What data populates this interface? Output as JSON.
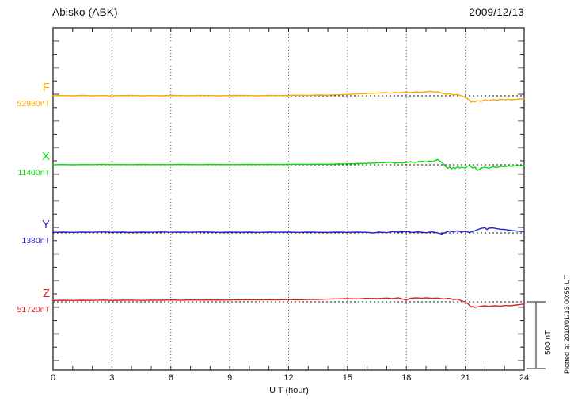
{
  "title": "Abisko (ABK)",
  "date": "2009/12/13",
  "xaxis": {
    "label": "U T (hour)",
    "ticks": [
      0,
      3,
      6,
      9,
      12,
      15,
      18,
      21,
      24
    ]
  },
  "scale_bar": {
    "label": "500 nT",
    "nT": 500
  },
  "footnote": "Plotted at 2010/01/13 00:55 UT",
  "chart_data": {
    "type": "line",
    "title": "Abisko (ABK)",
    "date": "2009/12/13",
    "xlabel": "U T (hour)",
    "x_range": [
      0,
      24
    ],
    "x_ticks": [
      0,
      3,
      6,
      9,
      12,
      15,
      18,
      21,
      24
    ],
    "x_grid_hours": [
      3,
      6,
      9,
      12,
      15,
      18,
      21
    ],
    "y_unit": "nT",
    "y_tick_step_nT": 100,
    "scale_bar_nT": 500,
    "note": "Each series plotted as deviation (nT) from its baseline value; dotted line = baseline.",
    "series": [
      {
        "name": "F",
        "value_label": "52980nT",
        "baseline_nT": 52980,
        "color": "#FFA800",
        "points": [
          [
            0,
            0
          ],
          [
            0.5,
            2
          ],
          [
            1,
            0
          ],
          [
            1.5,
            3
          ],
          [
            2,
            0
          ],
          [
            2.5,
            2
          ],
          [
            3,
            0
          ],
          [
            3.5,
            2
          ],
          [
            4,
            3
          ],
          [
            4.5,
            0
          ],
          [
            5,
            2
          ],
          [
            5.5,
            0
          ],
          [
            6,
            3
          ],
          [
            6.5,
            2
          ],
          [
            7,
            0
          ],
          [
            7.5,
            3
          ],
          [
            8,
            2
          ],
          [
            8.5,
            0
          ],
          [
            9,
            2
          ],
          [
            9.5,
            3
          ],
          [
            10,
            2
          ],
          [
            10.5,
            0
          ],
          [
            11,
            3
          ],
          [
            11.5,
            2
          ],
          [
            12,
            3
          ],
          [
            12.5,
            5
          ],
          [
            13,
            3
          ],
          [
            13.5,
            6
          ],
          [
            14,
            5
          ],
          [
            14.5,
            8
          ],
          [
            15,
            10
          ],
          [
            15.5,
            14
          ],
          [
            16,
            18
          ],
          [
            16.5,
            20
          ],
          [
            17,
            24
          ],
          [
            17.2,
            18
          ],
          [
            17.4,
            26
          ],
          [
            17.6,
            22
          ],
          [
            18,
            28
          ],
          [
            18.2,
            24
          ],
          [
            18.5,
            30
          ],
          [
            18.7,
            26
          ],
          [
            19,
            30
          ],
          [
            19.2,
            34
          ],
          [
            19.4,
            28
          ],
          [
            19.6,
            30
          ],
          [
            19.8,
            20
          ],
          [
            20,
            12
          ],
          [
            20.2,
            16
          ],
          [
            20.4,
            6
          ],
          [
            20.6,
            10
          ],
          [
            20.8,
            0
          ],
          [
            21,
            -10
          ],
          [
            21.1,
            -20
          ],
          [
            21.2,
            -30
          ],
          [
            21.3,
            -48
          ],
          [
            21.4,
            -40
          ],
          [
            21.5,
            -46
          ],
          [
            21.6,
            -36
          ],
          [
            21.8,
            -42
          ],
          [
            22,
            -30
          ],
          [
            22.2,
            -36
          ],
          [
            22.4,
            -28
          ],
          [
            22.6,
            -32
          ],
          [
            22.8,
            -26
          ],
          [
            23,
            -30
          ],
          [
            23.2,
            -26
          ],
          [
            23.4,
            -30
          ],
          [
            23.6,
            -26
          ],
          [
            23.8,
            -24
          ],
          [
            24,
            -22
          ]
        ]
      },
      {
        "name": "X",
        "value_label": "11400nT",
        "baseline_nT": 11400,
        "color": "#00DD00",
        "points": [
          [
            0,
            0
          ],
          [
            0.5,
            2
          ],
          [
            1,
            0
          ],
          [
            1.5,
            2
          ],
          [
            2,
            1
          ],
          [
            2.5,
            3
          ],
          [
            3,
            1
          ],
          [
            3.5,
            2
          ],
          [
            4,
            1
          ],
          [
            4.5,
            3
          ],
          [
            5,
            1
          ],
          [
            5.5,
            2
          ],
          [
            6,
            1
          ],
          [
            6.5,
            3
          ],
          [
            7,
            2
          ],
          [
            7.5,
            1
          ],
          [
            8,
            3
          ],
          [
            8.5,
            2
          ],
          [
            9,
            1
          ],
          [
            9.5,
            2
          ],
          [
            10,
            3
          ],
          [
            10.5,
            2
          ],
          [
            11,
            3
          ],
          [
            11.5,
            2
          ],
          [
            12,
            3
          ],
          [
            12.5,
            4
          ],
          [
            13,
            3
          ],
          [
            13.5,
            5
          ],
          [
            14,
            4
          ],
          [
            14.5,
            6
          ],
          [
            15,
            7
          ],
          [
            15.5,
            9
          ],
          [
            16,
            11
          ],
          [
            16.5,
            14
          ],
          [
            17,
            17
          ],
          [
            17.2,
            20
          ],
          [
            17.4,
            12
          ],
          [
            17.6,
            16
          ],
          [
            17.8,
            14
          ],
          [
            18,
            18
          ],
          [
            18.2,
            24
          ],
          [
            18.4,
            18
          ],
          [
            18.6,
            22
          ],
          [
            18.8,
            26
          ],
          [
            19,
            22
          ],
          [
            19.2,
            28
          ],
          [
            19.35,
            24
          ],
          [
            19.5,
            34
          ],
          [
            19.6,
            40
          ],
          [
            19.7,
            28
          ],
          [
            19.8,
            18
          ],
          [
            19.9,
            4
          ],
          [
            20,
            -12
          ],
          [
            20.1,
            -26
          ],
          [
            20.2,
            -16
          ],
          [
            20.3,
            -30
          ],
          [
            20.4,
            -20
          ],
          [
            20.5,
            -28
          ],
          [
            20.6,
            -14
          ],
          [
            20.7,
            -24
          ],
          [
            20.8,
            -18
          ],
          [
            21,
            -24
          ],
          [
            21.1,
            -12
          ],
          [
            21.2,
            -4
          ],
          [
            21.3,
            -16
          ],
          [
            21.4,
            -24
          ],
          [
            21.5,
            -18
          ],
          [
            21.6,
            -42
          ],
          [
            21.7,
            -36
          ],
          [
            21.8,
            -26
          ],
          [
            22,
            -18
          ],
          [
            22.2,
            -26
          ],
          [
            22.4,
            -14
          ],
          [
            22.6,
            -20
          ],
          [
            22.8,
            -10
          ],
          [
            23,
            -14
          ],
          [
            23.2,
            -8
          ],
          [
            23.4,
            -12
          ],
          [
            23.6,
            -6
          ],
          [
            23.8,
            -8
          ],
          [
            24,
            -4
          ]
        ]
      },
      {
        "name": "Y",
        "value_label": "1380nT",
        "baseline_nT": 1380,
        "color": "#2222CC",
        "points": [
          [
            0,
            4
          ],
          [
            0.5,
            6
          ],
          [
            1,
            4
          ],
          [
            1.5,
            6
          ],
          [
            2,
            5
          ],
          [
            2.5,
            7
          ],
          [
            3,
            5
          ],
          [
            3.5,
            6
          ],
          [
            4,
            4
          ],
          [
            4.5,
            6
          ],
          [
            5,
            5
          ],
          [
            5.5,
            7
          ],
          [
            6,
            5
          ],
          [
            6.5,
            6
          ],
          [
            7,
            5
          ],
          [
            7.5,
            7
          ],
          [
            8,
            6
          ],
          [
            8.5,
            4
          ],
          [
            9,
            6
          ],
          [
            9.5,
            5
          ],
          [
            10,
            6
          ],
          [
            10.5,
            4
          ],
          [
            11,
            6
          ],
          [
            11.5,
            5
          ],
          [
            12,
            6
          ],
          [
            12.5,
            4
          ],
          [
            13,
            6
          ],
          [
            13.5,
            5
          ],
          [
            14,
            4
          ],
          [
            14.5,
            6
          ],
          [
            15,
            4
          ],
          [
            15.5,
            6
          ],
          [
            16,
            4
          ],
          [
            16.3,
            0
          ],
          [
            16.6,
            6
          ],
          [
            17,
            2
          ],
          [
            17.3,
            10
          ],
          [
            17.6,
            6
          ],
          [
            18,
            10
          ],
          [
            18.3,
            4
          ],
          [
            18.6,
            8
          ],
          [
            19,
            2
          ],
          [
            19.3,
            8
          ],
          [
            19.6,
            0
          ],
          [
            19.8,
            -8
          ],
          [
            20,
            4
          ],
          [
            20.2,
            14
          ],
          [
            20.4,
            8
          ],
          [
            20.6,
            16
          ],
          [
            20.8,
            6
          ],
          [
            21,
            12
          ],
          [
            21.2,
            4
          ],
          [
            21.4,
            10
          ],
          [
            21.6,
            24
          ],
          [
            21.8,
            34
          ],
          [
            22,
            40
          ],
          [
            22.1,
            26
          ],
          [
            22.2,
            36
          ],
          [
            22.4,
            38
          ],
          [
            22.6,
            32
          ],
          [
            22.8,
            28
          ],
          [
            23,
            26
          ],
          [
            23.2,
            22
          ],
          [
            23.4,
            18
          ],
          [
            23.6,
            14
          ],
          [
            23.8,
            12
          ],
          [
            24,
            10
          ]
        ]
      },
      {
        "name": "Z",
        "value_label": "51720nT",
        "baseline_nT": 51720,
        "color": "#DD2222",
        "points": [
          [
            0,
            10
          ],
          [
            0.5,
            12
          ],
          [
            1,
            10
          ],
          [
            1.5,
            12
          ],
          [
            2,
            11
          ],
          [
            2.5,
            13
          ],
          [
            3,
            11
          ],
          [
            3.5,
            12
          ],
          [
            4,
            13
          ],
          [
            4.5,
            11
          ],
          [
            5,
            13
          ],
          [
            5.5,
            12
          ],
          [
            6,
            14
          ],
          [
            6.5,
            12
          ],
          [
            7,
            14
          ],
          [
            7.5,
            13
          ],
          [
            8,
            15
          ],
          [
            8.5,
            13
          ],
          [
            9,
            15
          ],
          [
            9.5,
            14
          ],
          [
            10,
            16
          ],
          [
            10.5,
            14
          ],
          [
            11,
            16
          ],
          [
            11.5,
            15
          ],
          [
            12,
            17
          ],
          [
            12.5,
            15
          ],
          [
            13,
            17
          ],
          [
            13.5,
            18
          ],
          [
            14,
            20
          ],
          [
            14.5,
            22
          ],
          [
            15,
            24
          ],
          [
            15.5,
            22
          ],
          [
            16,
            26
          ],
          [
            16.5,
            24
          ],
          [
            17,
            28
          ],
          [
            17.3,
            24
          ],
          [
            17.6,
            30
          ],
          [
            17.8,
            20
          ],
          [
            18,
            14
          ],
          [
            18.2,
            26
          ],
          [
            18.5,
            30
          ],
          [
            18.8,
            26
          ],
          [
            19,
            30
          ],
          [
            19.3,
            26
          ],
          [
            19.6,
            28
          ],
          [
            19.9,
            22
          ],
          [
            20.2,
            26
          ],
          [
            20.4,
            16
          ],
          [
            20.6,
            20
          ],
          [
            20.8,
            8
          ],
          [
            21,
            0
          ],
          [
            21.1,
            -10
          ],
          [
            21.2,
            -24
          ],
          [
            21.3,
            -40
          ],
          [
            21.4,
            -34
          ],
          [
            21.5,
            -42
          ],
          [
            21.7,
            -36
          ],
          [
            22,
            -30
          ],
          [
            22.2,
            -34
          ],
          [
            22.5,
            -30
          ],
          [
            22.8,
            -32
          ],
          [
            23,
            -28
          ],
          [
            23.3,
            -30
          ],
          [
            23.6,
            -24
          ],
          [
            23.8,
            -20
          ],
          [
            24,
            -16
          ]
        ]
      }
    ]
  }
}
